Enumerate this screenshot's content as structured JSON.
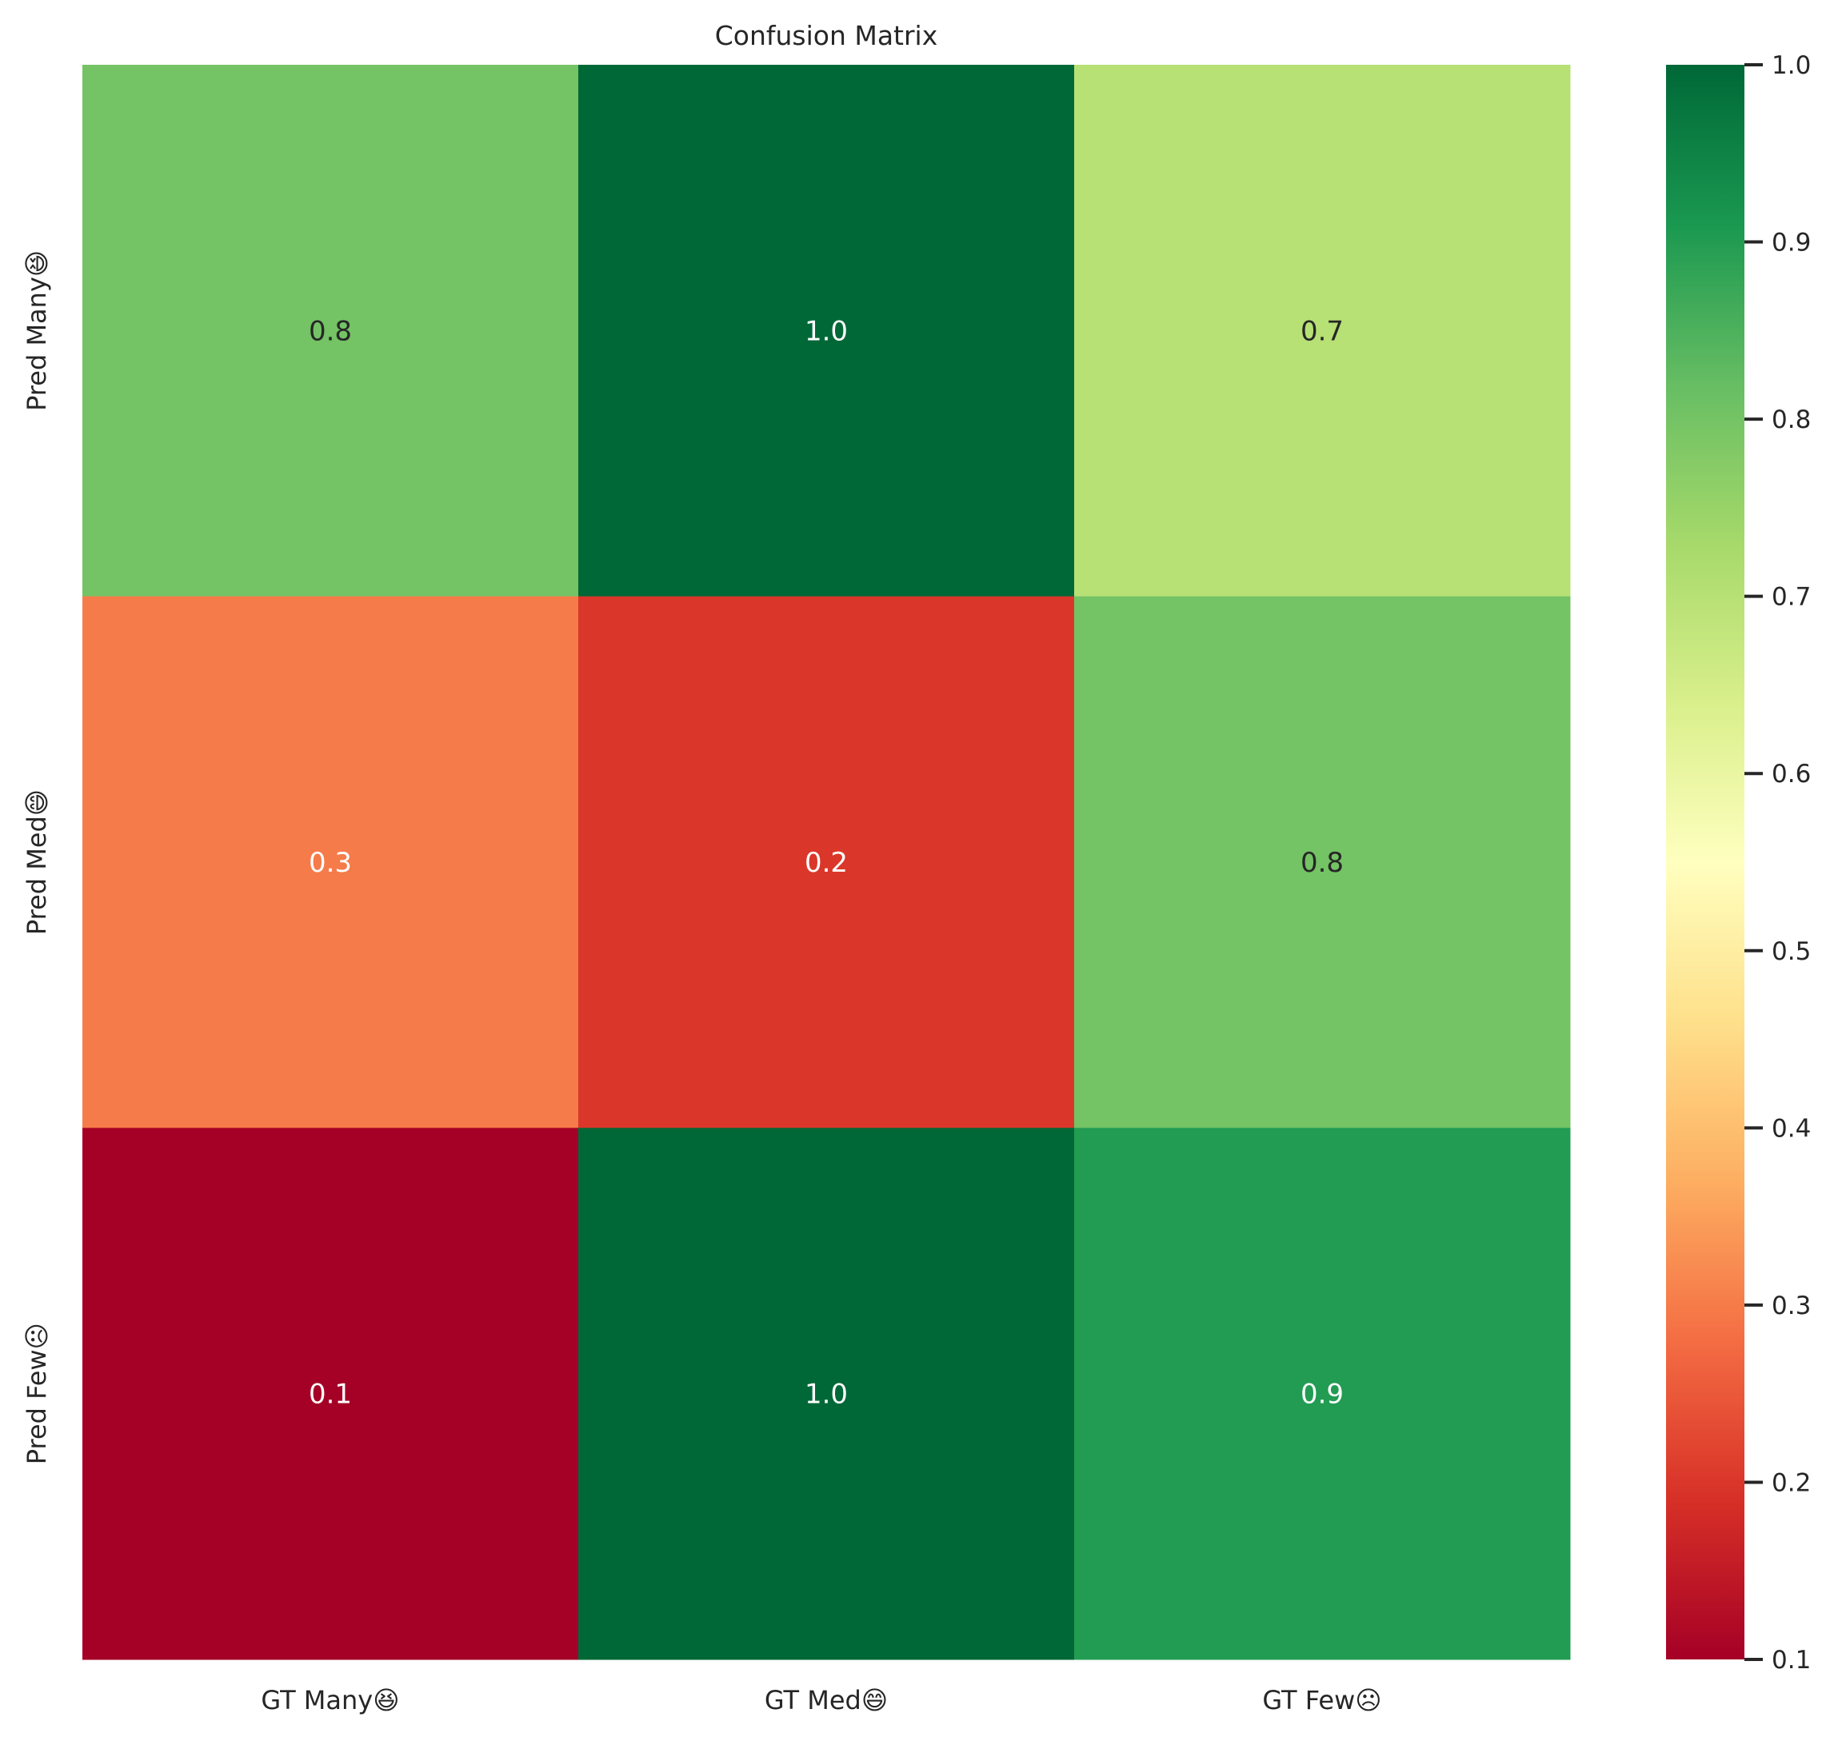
{
  "chart_data": {
    "type": "heatmap",
    "title": "Confusion Matrix",
    "x_categories": [
      "GT Many😆",
      "GT Med😄",
      "GT Few☹"
    ],
    "y_categories": [
      "Pred Many😆",
      "Pred Med😄",
      "Pred Few☹"
    ],
    "values": [
      [
        0.8,
        1.0,
        0.7
      ],
      [
        0.3,
        0.2,
        0.8
      ],
      [
        0.1,
        1.0,
        0.9
      ]
    ],
    "annotations": [
      [
        "0.8",
        "1.0",
        "0.7"
      ],
      [
        "0.3",
        "0.2",
        "0.8"
      ],
      [
        "0.1",
        "1.0",
        "0.9"
      ]
    ],
    "colormap": "RdYlGn",
    "colorbar": {
      "range": [
        0.1,
        1.0
      ],
      "ticks": [
        0.1,
        0.2,
        0.3,
        0.4,
        0.5,
        0.6,
        0.7,
        0.8,
        0.9,
        1.0
      ],
      "tick_labels": [
        "0.1",
        "0.2",
        "0.3",
        "0.4",
        "0.5",
        "0.6",
        "0.7",
        "0.8",
        "0.9",
        "1.0"
      ]
    },
    "colormap_stops": [
      "#a50026",
      "#d73027",
      "#f46d43",
      "#fdae61",
      "#fee08b",
      "#ffffbf",
      "#d9ef8b",
      "#a6d96a",
      "#66bd63",
      "#1a9850",
      "#006837"
    ],
    "annotation_colors": {
      "on_dark": "#ffffff",
      "on_light": "#262626"
    },
    "grid": false,
    "legend": "colorbar-right"
  }
}
